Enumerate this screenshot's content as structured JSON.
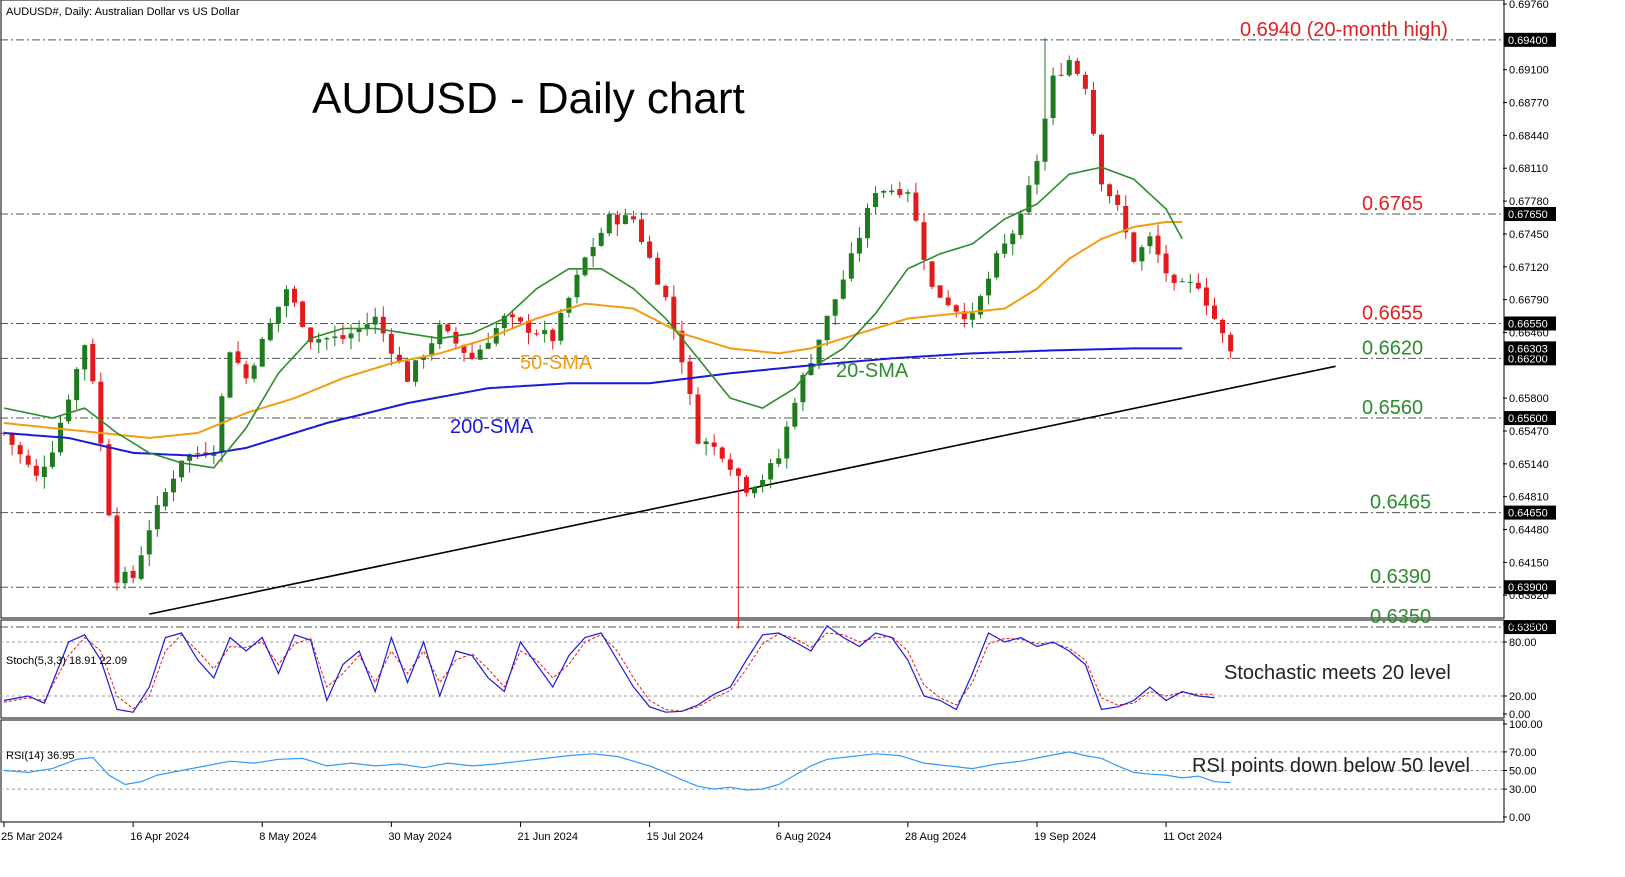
{
  "header": {
    "symbol_line": "AUDUSD#, Daily:  Australian Dollar vs US Dollar",
    "stoch_label": "Stoch(5,3,3) 18.91 22.09",
    "rsi_label": "RSI(14) 36.95"
  },
  "chart_data": {
    "type": "candlestick",
    "title": "AUDUSD - Daily chart",
    "ylim": [
      0.6337,
      0.6976
    ],
    "price_ticks": [
      "0.69760",
      "0.69100",
      "0.68770",
      "0.68440",
      "0.68110",
      "0.67780",
      "0.67450",
      "0.67120",
      "0.66790",
      "0.66460",
      "0.65800",
      "0.65470",
      "0.65140",
      "0.64810",
      "0.64480",
      "0.64150",
      "0.63820"
    ],
    "x_ticks": [
      {
        "i": 0,
        "label": "25 Mar 2024"
      },
      {
        "i": 16,
        "label": "16 Apr 2024"
      },
      {
        "i": 32,
        "label": "8 May 2024"
      },
      {
        "i": 48,
        "label": "30 May 2024"
      },
      {
        "i": 64,
        "label": "21 Jun 2024"
      },
      {
        "i": 80,
        "label": "15 Jul 2024"
      },
      {
        "i": 96,
        "label": "6 Aug 2024"
      },
      {
        "i": 112,
        "label": "28 Aug 2024"
      },
      {
        "i": 128,
        "label": "19 Sep 2024"
      },
      {
        "i": 144,
        "label": "11 Oct 2024"
      }
    ],
    "levels": [
      {
        "value": 0.694,
        "tag": "0.69400",
        "label": "0.6940 (20-month high)",
        "color": "#e02020",
        "label_x": 1240
      },
      {
        "value": 0.6765,
        "tag": "0.67650",
        "label": "0.6765",
        "color": "#e02020",
        "label_x": 1362
      },
      {
        "value": 0.6655,
        "tag": "0.66550",
        "label": "0.6655",
        "color": "#e02020",
        "label_x": 1362
      },
      {
        "value": 0.662,
        "tag": "0.66200",
        "label": "0.6620",
        "color": "#2e8b2e",
        "label_x": 1362
      },
      {
        "value": 0.656,
        "tag": "0.65600",
        "label": "0.6560",
        "color": "#2e8b2e",
        "label_x": 1362
      },
      {
        "value": 0.6465,
        "tag": "0.64650",
        "label": "0.6465",
        "color": "#2e8b2e",
        "label_x": 1370
      },
      {
        "value": 0.639,
        "tag": "0.63900",
        "label": "0.6390",
        "color": "#2e8b2e",
        "label_x": 1370
      },
      {
        "value": 0.635,
        "tag": "0.63500",
        "label": "0.6350",
        "color": "#2e8b2e",
        "label_x": 1370
      }
    ],
    "current_price": {
      "value": 0.663,
      "tag": "0.66303"
    },
    "trendline": {
      "from": {
        "i": 18,
        "value": 0.6363
      },
      "to": {
        "i": 165,
        "value": 0.6612
      }
    },
    "sma_labels": [
      {
        "text": "50-SMA",
        "color": "#f39c12"
      },
      {
        "text": "20-SMA",
        "color": "#2e8b2e"
      },
      {
        "text": "200-SMA",
        "color": "#1a1adb"
      }
    ],
    "annotations": {
      "stoch": "Stochastic meets 20 level",
      "rsi": "RSI points down below 50 level"
    },
    "stoch_ticks": [
      "100.00",
      "80.00",
      "20.00",
      "0.00"
    ],
    "rsi_ticks": [
      "100.00",
      "70.00",
      "50.00",
      "30.00",
      "0.00"
    ],
    "pivots": [
      [
        0,
        0.6545
      ],
      [
        4,
        0.65
      ],
      [
        6,
        0.653
      ],
      [
        10,
        0.6635
      ],
      [
        11,
        0.66
      ],
      [
        14,
        0.64
      ],
      [
        16,
        0.64
      ],
      [
        18,
        0.645
      ],
      [
        22,
        0.652
      ],
      [
        26,
        0.653
      ],
      [
        28,
        0.663
      ],
      [
        30,
        0.66
      ],
      [
        35,
        0.669
      ],
      [
        38,
        0.664
      ],
      [
        42,
        0.664
      ],
      [
        46,
        0.666
      ],
      [
        50,
        0.66
      ],
      [
        54,
        0.665
      ],
      [
        58,
        0.662
      ],
      [
        62,
        0.666
      ],
      [
        68,
        0.664
      ],
      [
        72,
        0.672
      ],
      [
        75,
        0.676
      ],
      [
        78,
        0.676
      ],
      [
        82,
        0.668
      ],
      [
        84,
        0.662
      ],
      [
        86,
        0.654
      ],
      [
        89,
        0.6525
      ],
      [
        92,
        0.649
      ],
      [
        94,
        0.65
      ],
      [
        96,
        0.652
      ],
      [
        98,
        0.658
      ],
      [
        102,
        0.666
      ],
      [
        105,
        0.672
      ],
      [
        108,
        0.679
      ],
      [
        112,
        0.679
      ],
      [
        115,
        0.669
      ],
      [
        118,
        0.667
      ],
      [
        120,
        0.666
      ],
      [
        123,
        0.672
      ],
      [
        126,
        0.676
      ],
      [
        128,
        0.682
      ],
      [
        130,
        0.69
      ],
      [
        132,
        0.692
      ],
      [
        134,
        0.6895
      ],
      [
        136,
        0.68
      ],
      [
        138,
        0.677
      ],
      [
        140,
        0.672
      ],
      [
        142,
        0.674
      ],
      [
        145,
        0.669
      ],
      [
        148,
        0.6695
      ],
      [
        150,
        0.666
      ],
      [
        152,
        0.6625
      ]
    ],
    "sma20": [
      [
        0,
        0.657
      ],
      [
        6,
        0.656
      ],
      [
        10,
        0.657
      ],
      [
        14,
        0.6545
      ],
      [
        18,
        0.6525
      ],
      [
        22,
        0.6515
      ],
      [
        26,
        0.651
      ],
      [
        30,
        0.655
      ],
      [
        34,
        0.6605
      ],
      [
        38,
        0.664
      ],
      [
        42,
        0.665
      ],
      [
        46,
        0.665
      ],
      [
        50,
        0.6645
      ],
      [
        54,
        0.664
      ],
      [
        58,
        0.6645
      ],
      [
        62,
        0.666
      ],
      [
        66,
        0.669
      ],
      [
        70,
        0.671
      ],
      [
        74,
        0.671
      ],
      [
        78,
        0.669
      ],
      [
        82,
        0.666
      ],
      [
        86,
        0.662
      ],
      [
        90,
        0.658
      ],
      [
        94,
        0.657
      ],
      [
        98,
        0.659
      ],
      [
        100,
        0.661
      ],
      [
        104,
        0.663
      ],
      [
        108,
        0.6665
      ],
      [
        112,
        0.671
      ],
      [
        116,
        0.6725
      ],
      [
        120,
        0.6735
      ],
      [
        124,
        0.676
      ],
      [
        128,
        0.6775
      ],
      [
        132,
        0.6805
      ],
      [
        136,
        0.6812
      ],
      [
        140,
        0.68
      ],
      [
        144,
        0.677
      ],
      [
        146,
        0.674
      ]
    ],
    "sma50": [
      [
        0,
        0.6555
      ],
      [
        6,
        0.655
      ],
      [
        12,
        0.6545
      ],
      [
        18,
        0.654
      ],
      [
        24,
        0.6545
      ],
      [
        30,
        0.6565
      ],
      [
        36,
        0.658
      ],
      [
        42,
        0.66
      ],
      [
        48,
        0.6615
      ],
      [
        54,
        0.6625
      ],
      [
        60,
        0.664
      ],
      [
        66,
        0.666
      ],
      [
        72,
        0.6675
      ],
      [
        78,
        0.667
      ],
      [
        84,
        0.6645
      ],
      [
        90,
        0.663
      ],
      [
        96,
        0.6625
      ],
      [
        100,
        0.663
      ],
      [
        106,
        0.6645
      ],
      [
        112,
        0.666
      ],
      [
        118,
        0.6665
      ],
      [
        124,
        0.667
      ],
      [
        128,
        0.669
      ],
      [
        132,
        0.672
      ],
      [
        136,
        0.674
      ],
      [
        140,
        0.6752
      ],
      [
        144,
        0.6757
      ],
      [
        146,
        0.6757
      ]
    ],
    "sma200": [
      [
        0,
        0.6545
      ],
      [
        8,
        0.654
      ],
      [
        16,
        0.6525
      ],
      [
        24,
        0.6522
      ],
      [
        30,
        0.653
      ],
      [
        40,
        0.6555
      ],
      [
        50,
        0.6575
      ],
      [
        60,
        0.659
      ],
      [
        70,
        0.6595
      ],
      [
        80,
        0.6595
      ],
      [
        90,
        0.6605
      ],
      [
        100,
        0.6613
      ],
      [
        110,
        0.662
      ],
      [
        120,
        0.6625
      ],
      [
        130,
        0.6628
      ],
      [
        140,
        0.663
      ],
      [
        146,
        0.663
      ]
    ],
    "stoch_k": [
      [
        0,
        15
      ],
      [
        3,
        20
      ],
      [
        5,
        12
      ],
      [
        8,
        80
      ],
      [
        10,
        88
      ],
      [
        12,
        60
      ],
      [
        14,
        5
      ],
      [
        16,
        2
      ],
      [
        18,
        30
      ],
      [
        20,
        85
      ],
      [
        22,
        90
      ],
      [
        24,
        60
      ],
      [
        26,
        40
      ],
      [
        28,
        85
      ],
      [
        30,
        70
      ],
      [
        32,
        85
      ],
      [
        34,
        45
      ],
      [
        36,
        88
      ],
      [
        38,
        82
      ],
      [
        40,
        15
      ],
      [
        42,
        55
      ],
      [
        44,
        70
      ],
      [
        46,
        25
      ],
      [
        48,
        85
      ],
      [
        50,
        35
      ],
      [
        52,
        80
      ],
      [
        54,
        20
      ],
      [
        56,
        70
      ],
      [
        58,
        65
      ],
      [
        60,
        40
      ],
      [
        62,
        25
      ],
      [
        64,
        80
      ],
      [
        66,
        55
      ],
      [
        68,
        30
      ],
      [
        70,
        65
      ],
      [
        72,
        85
      ],
      [
        74,
        90
      ],
      [
        76,
        60
      ],
      [
        78,
        30
      ],
      [
        80,
        8
      ],
      [
        82,
        2
      ],
      [
        84,
        3
      ],
      [
        86,
        10
      ],
      [
        88,
        22
      ],
      [
        90,
        30
      ],
      [
        92,
        60
      ],
      [
        94,
        88
      ],
      [
        96,
        90
      ],
      [
        98,
        80
      ],
      [
        100,
        70
      ],
      [
        102,
        98
      ],
      [
        104,
        85
      ],
      [
        106,
        75
      ],
      [
        108,
        90
      ],
      [
        110,
        85
      ],
      [
        112,
        60
      ],
      [
        114,
        20
      ],
      [
        116,
        15
      ],
      [
        118,
        5
      ],
      [
        120,
        45
      ],
      [
        122,
        90
      ],
      [
        124,
        80
      ],
      [
        126,
        85
      ],
      [
        128,
        75
      ],
      [
        130,
        80
      ],
      [
        132,
        70
      ],
      [
        134,
        55
      ],
      [
        136,
        5
      ],
      [
        138,
        8
      ],
      [
        140,
        15
      ],
      [
        142,
        30
      ],
      [
        144,
        15
      ],
      [
        146,
        25
      ],
      [
        148,
        20
      ],
      [
        150,
        18
      ]
    ],
    "stoch_d": [
      [
        0,
        13
      ],
      [
        3,
        18
      ],
      [
        5,
        15
      ],
      [
        8,
        65
      ],
      [
        10,
        85
      ],
      [
        12,
        70
      ],
      [
        14,
        20
      ],
      [
        16,
        6
      ],
      [
        18,
        20
      ],
      [
        20,
        70
      ],
      [
        22,
        88
      ],
      [
        24,
        70
      ],
      [
        26,
        50
      ],
      [
        28,
        75
      ],
      [
        30,
        74
      ],
      [
        32,
        80
      ],
      [
        34,
        55
      ],
      [
        36,
        78
      ],
      [
        38,
        84
      ],
      [
        40,
        30
      ],
      [
        42,
        45
      ],
      [
        44,
        65
      ],
      [
        46,
        35
      ],
      [
        48,
        70
      ],
      [
        50,
        45
      ],
      [
        52,
        70
      ],
      [
        54,
        35
      ],
      [
        56,
        60
      ],
      [
        58,
        67
      ],
      [
        60,
        50
      ],
      [
        62,
        30
      ],
      [
        64,
        70
      ],
      [
        66,
        60
      ],
      [
        68,
        40
      ],
      [
        70,
        55
      ],
      [
        72,
        80
      ],
      [
        74,
        88
      ],
      [
        76,
        70
      ],
      [
        78,
        40
      ],
      [
        80,
        15
      ],
      [
        82,
        5
      ],
      [
        84,
        3
      ],
      [
        86,
        8
      ],
      [
        88,
        18
      ],
      [
        90,
        26
      ],
      [
        92,
        50
      ],
      [
        94,
        78
      ],
      [
        96,
        89
      ],
      [
        98,
        84
      ],
      [
        100,
        74
      ],
      [
        102,
        90
      ],
      [
        104,
        88
      ],
      [
        106,
        80
      ],
      [
        108,
        85
      ],
      [
        110,
        86
      ],
      [
        112,
        70
      ],
      [
        114,
        32
      ],
      [
        116,
        18
      ],
      [
        118,
        10
      ],
      [
        120,
        35
      ],
      [
        122,
        78
      ],
      [
        124,
        84
      ],
      [
        126,
        83
      ],
      [
        128,
        78
      ],
      [
        130,
        79
      ],
      [
        132,
        73
      ],
      [
        134,
        60
      ],
      [
        136,
        18
      ],
      [
        138,
        10
      ],
      [
        140,
        12
      ],
      [
        142,
        25
      ],
      [
        144,
        20
      ],
      [
        146,
        24
      ],
      [
        148,
        22
      ],
      [
        150,
        22
      ]
    ],
    "rsi": [
      [
        0,
        50
      ],
      [
        3,
        48
      ],
      [
        6,
        52
      ],
      [
        9,
        62
      ],
      [
        11,
        64
      ],
      [
        13,
        45
      ],
      [
        15,
        35
      ],
      [
        17,
        38
      ],
      [
        19,
        45
      ],
      [
        22,
        50
      ],
      [
        25,
        55
      ],
      [
        28,
        60
      ],
      [
        31,
        58
      ],
      [
        34,
        62
      ],
      [
        37,
        63
      ],
      [
        40,
        55
      ],
      [
        43,
        58
      ],
      [
        46,
        55
      ],
      [
        49,
        57
      ],
      [
        52,
        53
      ],
      [
        55,
        58
      ],
      [
        58,
        55
      ],
      [
        61,
        57
      ],
      [
        64,
        60
      ],
      [
        67,
        63
      ],
      [
        70,
        66
      ],
      [
        73,
        68
      ],
      [
        76,
        65
      ],
      [
        78,
        60
      ],
      [
        80,
        55
      ],
      [
        82,
        48
      ],
      [
        84,
        40
      ],
      [
        86,
        33
      ],
      [
        88,
        30
      ],
      [
        90,
        32
      ],
      [
        92,
        29
      ],
      [
        94,
        30
      ],
      [
        96,
        35
      ],
      [
        98,
        45
      ],
      [
        100,
        55
      ],
      [
        102,
        62
      ],
      [
        105,
        65
      ],
      [
        108,
        68
      ],
      [
        111,
        66
      ],
      [
        114,
        58
      ],
      [
        117,
        55
      ],
      [
        120,
        52
      ],
      [
        123,
        57
      ],
      [
        126,
        60
      ],
      [
        129,
        65
      ],
      [
        132,
        70
      ],
      [
        134,
        66
      ],
      [
        136,
        63
      ],
      [
        138,
        55
      ],
      [
        140,
        48
      ],
      [
        142,
        46
      ],
      [
        144,
        45
      ],
      [
        146,
        42
      ],
      [
        148,
        44
      ],
      [
        150,
        38
      ],
      [
        152,
        37
      ]
    ]
  }
}
